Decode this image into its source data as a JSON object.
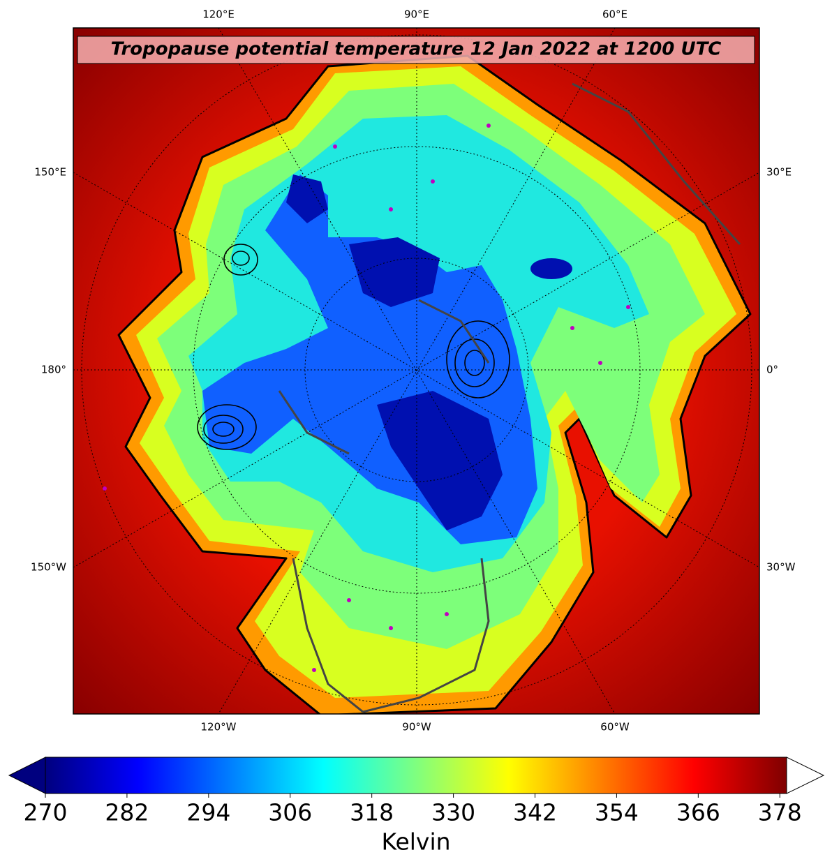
{
  "title": "Tropopause potential temperature 12 Jan 2022 at 1200 UTC",
  "map": {
    "top_labels": [
      "120°E",
      "90°E",
      "60°E"
    ],
    "bottom_labels": [
      "120°W",
      "90°W",
      "60°W"
    ],
    "left_labels": [
      "150°E",
      "180°",
      "150°W"
    ],
    "right_labels": [
      "30°E",
      "0°",
      "30°W"
    ]
  },
  "colorbar": {
    "label": "Kelvin",
    "range": [
      270,
      379
    ],
    "ticks": [
      270,
      282,
      294,
      306,
      318,
      330,
      342,
      354,
      366,
      378
    ],
    "colors": [
      "#00007f",
      "#0000ff",
      "#007fff",
      "#00ffff",
      "#7fff7f",
      "#ffff00",
      "#ff7f00",
      "#ff0000",
      "#7f0000"
    ],
    "extend_max_color": "#ffffff"
  }
}
